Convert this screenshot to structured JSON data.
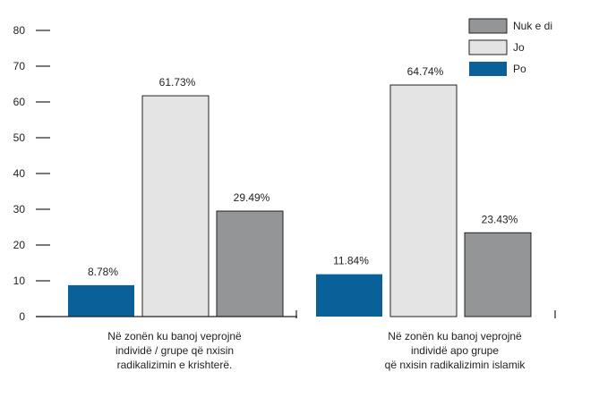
{
  "chart_data": {
    "type": "bar",
    "categories": [
      [
        "Në zonën ku banoj veprojnë",
        "individë / grupe që nxisin",
        "radikalizimin e krishterë."
      ],
      [
        "Në zonën ku banoj veprojnë",
        "individë apo grupe",
        "që nxisin radikalizimin islamik"
      ]
    ],
    "series": [
      {
        "name": "Po",
        "values": [
          8.78,
          11.84
        ],
        "labels": [
          "8.78%",
          "11.84%"
        ],
        "color": "#0a6199"
      },
      {
        "name": "Jo",
        "values": [
          61.73,
          64.74
        ],
        "labels": [
          "61.73%",
          "64.74%"
        ],
        "color": "#e4e4e5"
      },
      {
        "name": "Nuk e di",
        "values": [
          29.49,
          23.43
        ],
        "labels": [
          "29.49%",
          "23.43%"
        ],
        "color": "#949597"
      }
    ],
    "legend_order": [
      "Nuk e di",
      "Jo",
      "Po"
    ],
    "yticks": [
      0,
      10,
      20,
      30,
      40,
      50,
      60,
      70,
      80
    ],
    "ylim": [
      0,
      80
    ],
    "grid": false,
    "legend_position": "top-right"
  }
}
